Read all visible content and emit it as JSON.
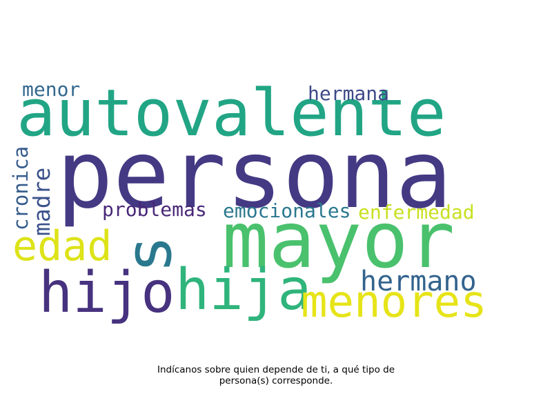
{
  "word_cloud": {
    "words": [
      {
        "key": "persona",
        "text": "persona",
        "color": "#443983"
      },
      {
        "key": "autovalente",
        "text": "autovalente",
        "color": "#21a585"
      },
      {
        "key": "mayor",
        "text": "mayor",
        "color": "#4ac16d"
      },
      {
        "key": "s",
        "text": "s",
        "color": "#2a788e"
      },
      {
        "key": "hijo",
        "text": "hijo",
        "color": "#46327e"
      },
      {
        "key": "hija",
        "text": "hija",
        "color": "#2fb47c"
      },
      {
        "key": "menores",
        "text": "menores",
        "color": "#e6e419"
      },
      {
        "key": "edad",
        "text": "edad",
        "color": "#dde318"
      },
      {
        "key": "hermano",
        "text": "hermano",
        "color": "#33638d"
      },
      {
        "key": "madre",
        "text": "madre",
        "color": "#3b528b"
      },
      {
        "key": "cronica",
        "text": "cronica",
        "color": "#365c8d"
      },
      {
        "key": "menor",
        "text": "menor",
        "color": "#31688e"
      },
      {
        "key": "hermana",
        "text": "hermana",
        "color": "#3e4989"
      },
      {
        "key": "problemas",
        "text": "problemas",
        "color": "#482878"
      },
      {
        "key": "emocionales",
        "text": "emocionales",
        "color": "#2a788e"
      },
      {
        "key": "enfermedad",
        "text": "enfermedad",
        "color": "#c8e020"
      }
    ]
  },
  "caption": {
    "line1": "Indícanos sobre quien depende de ti, a qué tipo de",
    "line2": "persona(s) corresponde."
  }
}
